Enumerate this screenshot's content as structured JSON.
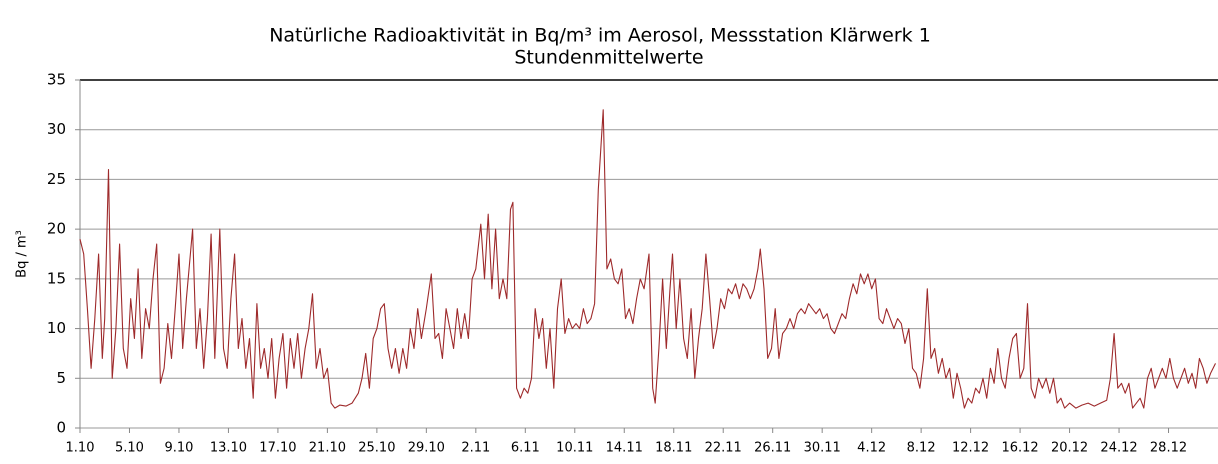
{
  "chart_data": {
    "type": "line",
    "title": "Natürliche Radioaktivität in Bq/m³ im Aerosol, Messstation Klärwerk 1",
    "subtitle": "Stundenmittelwerte",
    "y_label": "Bq / m³",
    "color": "#9e2a2b",
    "grid": true,
    "xlim": [
      0,
      92
    ],
    "ylim": [
      0,
      35
    ],
    "yticks": [
      0,
      5,
      10,
      15,
      20,
      25,
      30,
      35
    ],
    "xticks": [
      {
        "value": 0,
        "label": "1.10"
      },
      {
        "value": 4,
        "label": "5.10"
      },
      {
        "value": 8,
        "label": "9.10"
      },
      {
        "value": 12,
        "label": "13.10"
      },
      {
        "value": 16,
        "label": "17.10"
      },
      {
        "value": 20,
        "label": "21.10"
      },
      {
        "value": 24,
        "label": "25.10"
      },
      {
        "value": 28,
        "label": "29.10"
      },
      {
        "value": 32,
        "label": "2.11"
      },
      {
        "value": 36,
        "label": "6.11"
      },
      {
        "value": 40,
        "label": "10.11"
      },
      {
        "value": 44,
        "label": "14.11"
      },
      {
        "value": 48,
        "label": "18.11"
      },
      {
        "value": 52,
        "label": "22.11"
      },
      {
        "value": 56,
        "label": "26.11"
      },
      {
        "value": 60,
        "label": "30.11"
      },
      {
        "value": 64,
        "label": "4.12"
      },
      {
        "value": 68,
        "label": "8.12"
      },
      {
        "value": 72,
        "label": "12.12"
      },
      {
        "value": 76,
        "label": "16.12"
      },
      {
        "value": 80,
        "label": "20.12"
      },
      {
        "value": 84,
        "label": "24.12"
      },
      {
        "value": 88,
        "label": "28.12"
      }
    ],
    "x": [
      0,
      0.3,
      0.6,
      0.9,
      1.2,
      1.5,
      1.8,
      2.0,
      2.3,
      2.6,
      2.9,
      3.2,
      3.5,
      3.8,
      4.1,
      4.4,
      4.7,
      5.0,
      5.3,
      5.6,
      5.9,
      6.2,
      6.5,
      6.8,
      7.1,
      7.4,
      7.7,
      8.0,
      8.3,
      8.6,
      9.1,
      9.4,
      9.7,
      10.0,
      10.3,
      10.6,
      10.9,
      11.3,
      11.6,
      11.9,
      12.2,
      12.5,
      12.8,
      13.1,
      13.4,
      13.7,
      14.0,
      14.3,
      14.6,
      14.9,
      15.2,
      15.5,
      15.8,
      16.1,
      16.4,
      16.7,
      17.0,
      17.3,
      17.6,
      17.9,
      18.2,
      18.5,
      18.8,
      19.1,
      19.4,
      19.7,
      20.0,
      20.3,
      20.6,
      21.0,
      21.5,
      22.0,
      22.5,
      22.8,
      23.1,
      23.4,
      23.7,
      24.0,
      24.3,
      24.6,
      24.9,
      25.2,
      25.5,
      25.8,
      26.1,
      26.4,
      26.7,
      27.0,
      27.3,
      27.6,
      28.0,
      28.4,
      28.7,
      29.0,
      29.3,
      29.6,
      29.9,
      30.2,
      30.5,
      30.8,
      31.1,
      31.4,
      31.7,
      32.0,
      32.4,
      32.7,
      33.0,
      33.3,
      33.6,
      33.9,
      34.2,
      34.5,
      34.8,
      35.0,
      35.3,
      35.6,
      35.9,
      36.2,
      36.5,
      36.8,
      37.1,
      37.4,
      37.7,
      38.0,
      38.3,
      38.6,
      38.9,
      39.2,
      39.5,
      39.8,
      40.1,
      40.4,
      40.7,
      41.0,
      41.3,
      41.6,
      41.9,
      42.3,
      42.6,
      42.9,
      43.2,
      43.5,
      43.8,
      44.1,
      44.4,
      44.7,
      45.0,
      45.3,
      45.6,
      46.0,
      46.3,
      46.5,
      46.8,
      47.1,
      47.4,
      47.7,
      47.9,
      48.2,
      48.5,
      48.8,
      49.1,
      49.4,
      49.7,
      50.0,
      50.3,
      50.6,
      50.9,
      51.2,
      51.5,
      51.8,
      52.1,
      52.4,
      52.7,
      53.0,
      53.3,
      53.6,
      53.9,
      54.2,
      54.5,
      54.8,
      55.0,
      55.3,
      55.6,
      55.9,
      56.2,
      56.5,
      56.8,
      57.1,
      57.4,
      57.7,
      58.0,
      58.3,
      58.6,
      58.9,
      59.2,
      59.5,
      59.8,
      60.1,
      60.4,
      60.7,
      61.0,
      61.3,
      61.6,
      61.9,
      62.2,
      62.5,
      62.8,
      63.1,
      63.4,
      63.7,
      64.0,
      64.3,
      64.6,
      64.9,
      65.2,
      65.5,
      65.8,
      66.1,
      66.4,
      66.7,
      67.0,
      67.3,
      67.6,
      67.9,
      68.2,
      68.5,
      68.8,
      69.1,
      69.4,
      69.7,
      70.0,
      70.3,
      70.6,
      70.9,
      71.2,
      71.5,
      71.8,
      72.1,
      72.4,
      72.7,
      73.0,
      73.3,
      73.6,
      73.9,
      74.2,
      74.5,
      74.8,
      75.1,
      75.4,
      75.7,
      76.0,
      76.3,
      76.6,
      76.9,
      77.2,
      77.5,
      77.8,
      78.1,
      78.4,
      78.7,
      79.0,
      79.3,
      79.6,
      80.0,
      80.5,
      81.0,
      81.5,
      82.0,
      82.5,
      83.0,
      83.3,
      83.6,
      83.9,
      84.2,
      84.5,
      84.8,
      85.1,
      85.4,
      85.7,
      86.0,
      86.3,
      86.6,
      86.9,
      87.2,
      87.5,
      87.8,
      88.1,
      88.4,
      88.7,
      89.0,
      89.3,
      89.6,
      89.9,
      90.2,
      90.5,
      90.8,
      91.1,
      91.4,
      91.8
    ],
    "values": [
      19,
      17.5,
      12,
      6,
      11,
      17.5,
      7,
      11,
      26,
      5,
      10,
      18.5,
      8,
      6,
      13,
      9,
      16,
      7,
      12,
      10,
      15,
      18.5,
      4.5,
      6,
      10.5,
      7,
      12,
      17.5,
      8,
      13,
      20,
      8,
      12,
      6,
      11,
      19.5,
      7,
      20,
      8,
      6,
      13,
      17.5,
      8,
      11,
      6,
      9,
      3,
      12.5,
      6,
      8,
      5,
      9,
      3,
      7,
      9.5,
      4,
      9,
      6,
      9.5,
      5,
      8,
      10,
      13.5,
      6,
      8,
      5,
      6,
      2.5,
      2,
      2.3,
      2.2,
      2.5,
      3.5,
      5,
      7.5,
      4,
      9,
      10,
      12,
      12.5,
      8,
      6,
      8,
      5.5,
      8,
      6,
      10,
      8,
      12,
      9,
      12,
      15.5,
      9,
      9.5,
      7,
      12,
      10,
      8,
      12,
      9,
      11.5,
      9,
      15,
      16,
      20.5,
      15,
      21.5,
      14,
      20,
      13,
      15,
      13,
      22,
      22.7,
      4,
      3,
      4,
      3.5,
      5,
      12,
      9,
      11,
      6,
      10,
      4,
      12,
      15,
      9.5,
      11,
      10,
      10.5,
      10,
      12,
      10.5,
      11,
      12.5,
      24,
      32,
      16,
      17,
      15,
      14.5,
      16,
      11,
      12,
      10.5,
      13,
      15,
      14,
      17.5,
      4,
      2.5,
      8,
      15,
      8,
      14,
      17.5,
      10,
      15,
      9,
      7,
      12,
      5,
      9,
      12,
      17.5,
      13,
      8,
      10,
      13,
      12,
      14,
      13.5,
      14.5,
      13,
      14.5,
      14,
      13,
      14,
      16,
      18,
      14,
      7,
      8,
      12,
      7,
      9.5,
      10,
      11,
      10,
      11.5,
      12,
      11.5,
      12.5,
      12,
      11.5,
      12,
      11,
      11.5,
      10,
      9.5,
      10.5,
      11.5,
      11,
      13,
      14.5,
      13.5,
      15.5,
      14.5,
      15.5,
      14,
      15,
      11,
      10.5,
      12,
      11,
      10,
      11,
      10.5,
      8.5,
      10,
      6,
      5.5,
      4,
      7,
      14,
      7,
      8,
      5.5,
      7,
      5,
      6,
      3,
      5.5,
      4,
      2,
      3,
      2.5,
      4,
      3.5,
      5,
      3,
      6,
      4.5,
      8,
      5,
      4,
      7,
      9,
      9.5,
      5,
      6,
      12.5,
      4,
      3,
      5,
      4,
      5,
      3.5,
      5,
      2.5,
      3,
      2,
      2.5,
      2,
      2.3,
      2.5,
      2.2,
      2.5,
      2.8,
      5,
      9.5,
      4,
      4.5,
      3.5,
      4.5,
      2,
      2.5,
      3,
      2,
      5,
      6,
      4,
      5,
      6,
      5,
      7,
      5,
      4,
      5,
      6,
      4.5,
      5.5,
      4,
      7,
      6,
      4.5,
      5.5,
      6.5
    ]
  }
}
